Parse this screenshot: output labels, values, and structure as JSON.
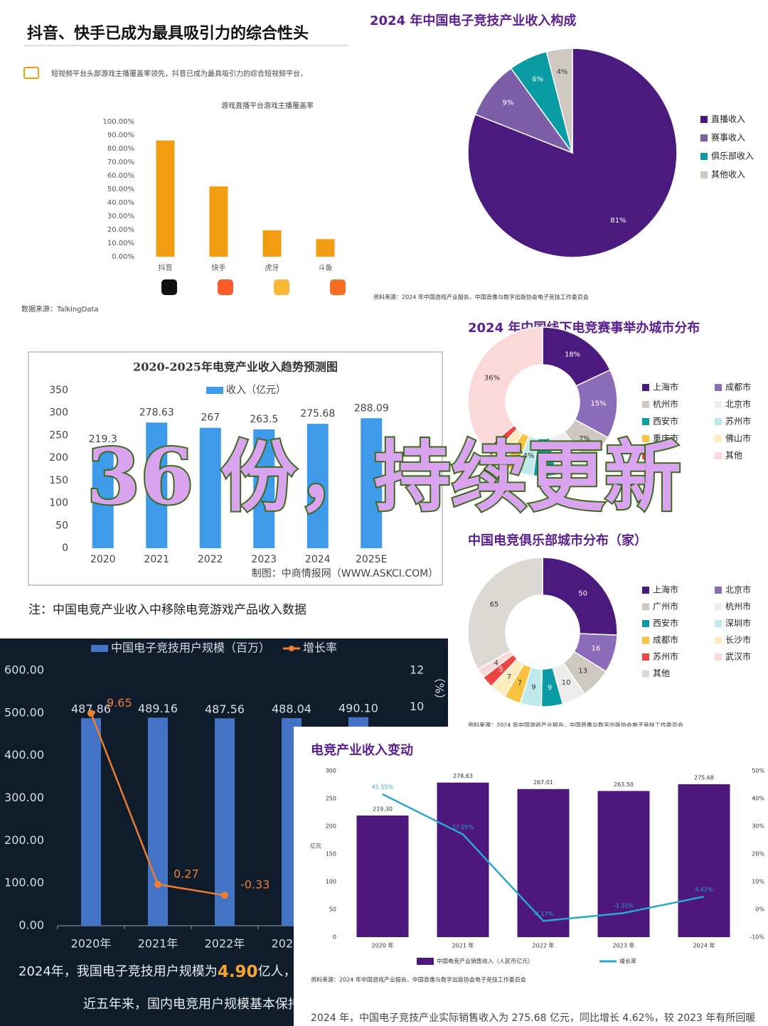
{
  "chart_data": [
    {
      "type": "bar",
      "title": "抖音、快手已成为最具吸引力的综合性头",
      "subtitle": "短视频平台头部游戏主播覆盖率领先，抖音已成为最具吸引力的综合短视频平台，",
      "chart_title": "游戏直播平台游戏主播覆盖率",
      "source": "数据来源：TalkingData",
      "categories": [
        "抖音",
        "快手",
        "虎牙",
        "斗鱼"
      ],
      "series": [
        {
          "name": "覆盖率",
          "color": "#f29c11",
          "values": [
            86,
            52,
            19.5,
            13
          ]
        }
      ],
      "ylim": [
        0,
        100
      ],
      "yticks": [
        {
          "value": 0,
          "label": "0.00%"
        },
        {
          "value": 10,
          "label": "10.00%"
        },
        {
          "value": 20,
          "label": "20.00%"
        },
        {
          "value": 30,
          "label": "30.00%"
        },
        {
          "value": 40,
          "label": "40.00%"
        },
        {
          "value": 50,
          "label": "50.00%"
        },
        {
          "value": 60,
          "label": "60.00%"
        },
        {
          "value": 70,
          "label": "70.00%"
        },
        {
          "value": 80,
          "label": "80.00%"
        },
        {
          "value": 90,
          "label": "90.00%"
        },
        {
          "value": 100,
          "label": "100.00%"
        }
      ],
      "grid": false
    },
    {
      "type": "pie",
      "title": "2024 年中国电子竞技产业收入构成",
      "source": "资料来源：2024 年中国游戏产业报告，中国音像与数字出版协会电子竞技工作委员会",
      "categories": [
        "直播收入",
        "赛事收入",
        "俱乐部收入",
        "其他收入"
      ],
      "values": [
        81,
        9,
        6,
        4
      ],
      "value_labels": [
        "81%",
        "9%",
        "6%",
        "4%"
      ],
      "colors": [
        "#4b1a7f",
        "#7b5ea7",
        "#0a9ca5",
        "#d0c9c3"
      ]
    },
    {
      "type": "bar",
      "title": "2020-2025年电竞产业收入趋势预测图",
      "source": "制图：中商情报网（WWW.ASKCI.COM）",
      "note": "注：中国电竞产业收入中移除电竞游戏产品收入数据",
      "categories": [
        "2020",
        "2021",
        "2022",
        "2023",
        "2024",
        "2025E"
      ],
      "series": [
        {
          "name": "收入（亿元）",
          "color": "#3d9be9",
          "values": [
            219.3,
            278.63,
            267,
            263.5,
            275.68,
            288.09
          ]
        }
      ],
      "ylim": [
        0,
        350
      ],
      "yticks": [
        0,
        50,
        100,
        150,
        200,
        250,
        300,
        350
      ],
      "grid": false
    },
    {
      "type": "donut",
      "title": "2024 年中国线下电竞赛事举办城市分布",
      "categories": [
        "上海市",
        "成都市",
        "杭州市",
        "北京市",
        "西安市",
        "苏州市",
        "重庆市",
        "佛山市",
        null,
        "其他"
      ],
      "values": [
        18,
        15,
        7,
        7,
        5,
        4,
        3,
        3,
        2,
        36
      ],
      "value_labels": [
        "18%",
        "15%",
        "7%",
        "7%",
        "5%",
        "4%",
        "3%",
        "3%",
        "2%",
        "36%"
      ],
      "colors": [
        "#4b1a7f",
        "#8c6bb8",
        "#cfc8c0",
        "#ececec",
        "#0a9ca5",
        "#bfe9ea",
        "#f7c340",
        "#fcecc0",
        "#ef4444",
        "#fcd9d9"
      ]
    },
    {
      "type": "donut",
      "title": "中国电竞俱乐部城市分布（家）",
      "source": "资料来源：2024 年中国游戏产业报告，中国音像与数字出版协会电子竞技工作委员会",
      "categories": [
        "上海市",
        "北京市",
        "广州市",
        "杭州市",
        "西安市",
        "深圳市",
        "成都市",
        "长沙市",
        "苏州市",
        "武汉市",
        "其他"
      ],
      "values": [
        50,
        16,
        13,
        10,
        9,
        9,
        7,
        7,
        5,
        4,
        65
      ],
      "colors": [
        "#4b1a7f",
        "#8c6bb8",
        "#cfc8c0",
        "#ececec",
        "#0a9ca5",
        "#bfe9ea",
        "#f7c340",
        "#fcecc0",
        "#ef4444",
        "#fcd9d9",
        "#dcd8d3"
      ]
    },
    {
      "type": "bar",
      "y2_label": "（%）",
      "summary": [
        "2024年，我国电子竞技用户规模为",
        "4.90",
        "亿人，"
      ],
      "summary2": "近五年来，国内电竞用户规模基本保持",
      "categories": [
        "2020年",
        "2021年",
        "2022年",
        "2023年",
        null
      ],
      "series": [
        {
          "name": "中国电子竞技用户规模（百万）",
          "color": "#4472c4",
          "values": [
            487.86,
            489.16,
            487.56,
            488.04,
            490.1
          ],
          "value_labels": [
            "487.86",
            "489.16",
            "487.56",
            "488.04",
            "490.10"
          ]
        },
        {
          "name": "增长率",
          "color": "#ed7d31",
          "axis": "y2",
          "values": [
            9.65,
            0.27,
            -0.33,
            null,
            null
          ]
        }
      ],
      "ylim": [
        0,
        600
      ],
      "yticks": [
        {
          "value": 0,
          "label": "0.00"
        },
        {
          "value": 100,
          "label": "100.00"
        },
        {
          "value": 200,
          "label": "200.00"
        },
        {
          "value": 300,
          "label": "300.00"
        },
        {
          "value": 400,
          "label": "400.00"
        },
        {
          "value": 500,
          "label": "500.00"
        },
        {
          "value": 600,
          "label": "600.00"
        }
      ],
      "y2lim": [
        -2,
        12
      ],
      "y2ticks": [
        10,
        12
      ],
      "grid": false
    },
    {
      "type": "bar",
      "title": "电竞产业收入变动",
      "y_label": "亿元",
      "source": "资料来源：2024 年中国游戏产业报告，中国音像与数字出版协会电子竞技工作委员会",
      "note": "2024 年，中国电子竞技产业实际销售收入为 275.68 亿元，同比增长 4.62%，较 2023 年有所回暖",
      "categories": [
        "2020 年",
        "2021 年",
        "2022 年",
        "2023 年",
        "2024 年"
      ],
      "series": [
        {
          "name": "中国电竞产业销售收入（人民币亿元）",
          "color": "#4d177e",
          "values": [
            219.3,
            278.63,
            267.01,
            263.5,
            275.68
          ],
          "value_labels": [
            "219.30",
            "278.63",
            "267.01",
            "263.50",
            "275.68"
          ]
        },
        {
          "name": "增长率",
          "color": "#2aa7c9",
          "axis": "y2",
          "values": [
            41.55,
            27.05,
            -4.17,
            -1.31,
            4.62
          ],
          "value_labels": [
            "41.55%",
            "27.05%",
            "-4.17%",
            "-1.31%",
            "4.62%"
          ]
        }
      ],
      "ylim": [
        0,
        300
      ],
      "yticks": [
        0,
        50,
        100,
        150,
        200,
        250,
        300
      ],
      "y2lim": [
        -10,
        50
      ],
      "y2ticks": [
        {
          "value": -10,
          "label": "-10%"
        },
        {
          "value": 0,
          "label": "0%"
        },
        {
          "value": 10,
          "label": "10%"
        },
        {
          "value": 20,
          "label": "20%"
        },
        {
          "value": 30,
          "label": "30%"
        },
        {
          "value": 40,
          "label": "40%"
        },
        {
          "value": 50,
          "label": "50%"
        }
      ],
      "grid": false
    }
  ],
  "overlay": "36 份，持续更新"
}
